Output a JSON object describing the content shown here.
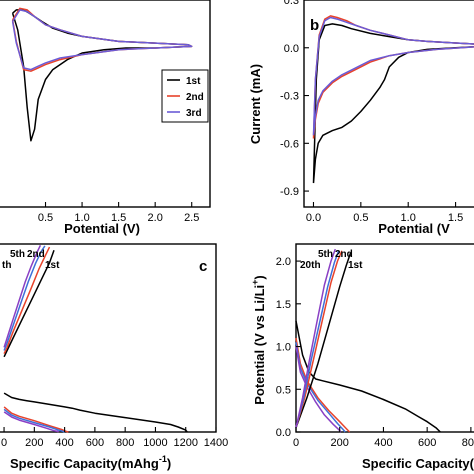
{
  "colors": {
    "cycle1": "#000000",
    "cycle2": "#e8432b",
    "cycle3": "#6b5bd6",
    "cycle5": "#3f6fd8",
    "cycle20": "#8a3fc4"
  },
  "chart_data": [
    {
      "panel": "a",
      "type": "line",
      "title": "",
      "xlabel": "Potential (V)",
      "ylabel": "",
      "xticks": [
        "0.5",
        "1.0",
        "1.5",
        "2.0",
        "2.5"
      ],
      "yticks": [],
      "xlim": [
        -0.15,
        2.75
      ],
      "ylim": [
        -0.95,
        0.3
      ],
      "legend": {
        "position": "right",
        "entries": [
          "1st",
          "2nd",
          "3rd"
        ]
      },
      "series": [
        {
          "name": "1st",
          "color": "#000000",
          "x": [
            0.05,
            0.12,
            0.2,
            0.25,
            0.3,
            0.35,
            0.4,
            0.5,
            0.6,
            0.8,
            1.0,
            1.3,
            1.6,
            2.0,
            2.5,
            2.45,
            2.0,
            1.5,
            1.0,
            0.8,
            0.6,
            0.45,
            0.35,
            0.28,
            0.2,
            0.1,
            0.05
          ],
          "y": [
            0.22,
            0.12,
            -0.1,
            -0.35,
            -0.55,
            -0.48,
            -0.3,
            -0.18,
            -0.12,
            -0.06,
            -0.02,
            0.0,
            0.01,
            0.01,
            0.02,
            0.03,
            0.04,
            0.05,
            0.08,
            0.1,
            0.13,
            0.17,
            0.2,
            0.22,
            0.24,
            0.24,
            0.22
          ]
        },
        {
          "name": "2nd",
          "color": "#e8432b",
          "x": [
            0.05,
            0.1,
            0.2,
            0.3,
            0.4,
            0.5,
            0.7,
            1.0,
            1.5,
            2.0,
            2.5,
            2.45,
            2.0,
            1.5,
            1.0,
            0.7,
            0.5,
            0.35,
            0.25,
            0.15,
            0.05
          ],
          "y": [
            0.18,
            0.05,
            -0.12,
            -0.13,
            -0.11,
            -0.09,
            -0.06,
            -0.03,
            0.0,
            0.01,
            0.02,
            0.03,
            0.04,
            0.05,
            0.08,
            0.12,
            0.15,
            0.2,
            0.24,
            0.25,
            0.18
          ]
        },
        {
          "name": "3rd",
          "color": "#6b5bd6",
          "x": [
            0.05,
            0.1,
            0.2,
            0.3,
            0.4,
            0.5,
            0.7,
            1.0,
            1.5,
            2.0,
            2.5,
            2.45,
            2.0,
            1.5,
            1.0,
            0.7,
            0.5,
            0.35,
            0.25,
            0.15,
            0.05
          ],
          "y": [
            0.17,
            0.04,
            -0.11,
            -0.12,
            -0.1,
            -0.08,
            -0.05,
            -0.03,
            0.0,
            0.01,
            0.02,
            0.03,
            0.04,
            0.05,
            0.08,
            0.12,
            0.15,
            0.2,
            0.23,
            0.24,
            0.17
          ]
        }
      ]
    },
    {
      "panel": "b",
      "type": "line",
      "title": "",
      "xlabel": "Potential (V",
      "ylabel": "Current (mA)",
      "xticks": [
        "0.0",
        "0.5",
        "1.0",
        "1.5"
      ],
      "yticks": [
        "0.3",
        "0.0",
        "-0.3",
        "-0.6",
        "-0.9"
      ],
      "xlim": [
        -0.1,
        1.8
      ],
      "ylim": [
        -1.0,
        0.3
      ],
      "series": [
        {
          "name": "1st",
          "color": "#000000",
          "x": [
            0.0,
            0.02,
            0.05,
            0.1,
            0.2,
            0.3,
            0.4,
            0.5,
            0.6,
            0.7,
            0.75,
            0.8,
            0.9,
            1.0,
            1.2,
            1.5,
            1.8,
            1.8,
            1.5,
            1.2,
            1.0,
            0.8,
            0.6,
            0.4,
            0.3,
            0.2,
            0.12,
            0.06,
            0.03,
            0.0
          ],
          "y": [
            -0.85,
            -0.7,
            -0.6,
            -0.55,
            -0.52,
            -0.5,
            -0.46,
            -0.4,
            -0.33,
            -0.25,
            -0.2,
            -0.12,
            -0.06,
            -0.03,
            -0.01,
            0.0,
            0.01,
            0.02,
            0.03,
            0.04,
            0.05,
            0.07,
            0.09,
            0.12,
            0.14,
            0.15,
            0.14,
            0.05,
            -0.2,
            -0.85
          ]
        },
        {
          "name": "2nd",
          "color": "#e8432b",
          "x": [
            0.0,
            0.02,
            0.05,
            0.1,
            0.2,
            0.3,
            0.4,
            0.5,
            0.6,
            0.8,
            1.0,
            1.3,
            1.8,
            1.8,
            1.5,
            1.2,
            1.0,
            0.8,
            0.6,
            0.45,
            0.35,
            0.25,
            0.18,
            0.12,
            0.06,
            0.02,
            0.0
          ],
          "y": [
            -0.57,
            -0.45,
            -0.35,
            -0.28,
            -0.22,
            -0.18,
            -0.15,
            -0.12,
            -0.09,
            -0.05,
            -0.03,
            -0.01,
            0.01,
            0.02,
            0.03,
            0.04,
            0.05,
            0.08,
            0.11,
            0.14,
            0.17,
            0.19,
            0.2,
            0.18,
            0.08,
            -0.2,
            -0.57
          ]
        },
        {
          "name": "3rd",
          "color": "#6b5bd6",
          "x": [
            0.0,
            0.02,
            0.05,
            0.1,
            0.2,
            0.3,
            0.4,
            0.5,
            0.6,
            0.8,
            1.0,
            1.3,
            1.8,
            1.8,
            1.5,
            1.2,
            1.0,
            0.8,
            0.6,
            0.45,
            0.35,
            0.25,
            0.18,
            0.12,
            0.06,
            0.02,
            0.0
          ],
          "y": [
            -0.55,
            -0.43,
            -0.33,
            -0.27,
            -0.21,
            -0.17,
            -0.14,
            -0.11,
            -0.08,
            -0.05,
            -0.03,
            -0.01,
            0.01,
            0.02,
            0.03,
            0.04,
            0.05,
            0.08,
            0.11,
            0.14,
            0.16,
            0.18,
            0.19,
            0.17,
            0.07,
            -0.2,
            -0.55
          ]
        }
      ]
    },
    {
      "panel": "c",
      "type": "line",
      "title": "",
      "xlabel": "Specific  Capacity(mAhg",
      "xlabel_superscript": "-1",
      "xlabel_tail": ")",
      "ylabel": "",
      "xticks": [
        "0",
        "200",
        "400",
        "600",
        "800",
        "1000",
        "1200",
        "1400"
      ],
      "yticks": [],
      "xlim": [
        -40,
        1400
      ],
      "ylim": [
        0,
        3.0
      ],
      "annotations": [
        "th",
        "5th",
        "2nd",
        "1st"
      ],
      "series": [
        {
          "name": "1st",
          "color": "#000000",
          "x": [
            0,
            50,
            100,
            150,
            200,
            300,
            400,
            450,
            500,
            600,
            800,
            1000,
            1100,
            1150,
            1200,
            1210
          ],
          "y": [
            0.62,
            0.55,
            0.52,
            0.5,
            0.48,
            0.44,
            0.4,
            0.38,
            0.35,
            0.3,
            0.23,
            0.16,
            0.12,
            0.08,
            0.03,
            0.0
          ]
        },
        {
          "name": "2nd",
          "color": "#e8432b",
          "x": [
            0,
            50,
            100,
            200,
            300,
            380,
            410,
            425
          ],
          "y": [
            0.4,
            0.3,
            0.25,
            0.18,
            0.1,
            0.04,
            0.01,
            0.0
          ]
        },
        {
          "name": "5th",
          "color": "#3f6fd8",
          "x": [
            0,
            50,
            100,
            200,
            300,
            360,
            390,
            400
          ],
          "y": [
            0.36,
            0.27,
            0.22,
            0.15,
            0.08,
            0.03,
            0.01,
            0.0
          ]
        },
        {
          "name": "20th",
          "color": "#8a3fc4",
          "x": [
            0,
            50,
            100,
            200,
            280,
            330,
            355,
            360
          ],
          "y": [
            0.32,
            0.24,
            0.19,
            0.12,
            0.06,
            0.02,
            0.01,
            0.0
          ]
        },
        {
          "name": "1st-charge",
          "color": "#000000",
          "x": [
            0,
            20,
            60,
            120,
            180,
            240,
            300,
            330
          ],
          "y": [
            1.2,
            1.3,
            1.5,
            1.8,
            2.1,
            2.4,
            2.7,
            2.9
          ]
        },
        {
          "name": "2nd-charge",
          "color": "#e8432b",
          "x": [
            0,
            20,
            60,
            120,
            180,
            230,
            280,
            300
          ],
          "y": [
            1.25,
            1.35,
            1.6,
            1.95,
            2.3,
            2.6,
            2.85,
            2.95
          ]
        },
        {
          "name": "5th-charge",
          "color": "#3f6fd8",
          "x": [
            0,
            20,
            60,
            110,
            160,
            210,
            250,
            270
          ],
          "y": [
            1.3,
            1.42,
            1.7,
            2.05,
            2.4,
            2.7,
            2.9,
            2.97
          ]
        },
        {
          "name": "20th-charge",
          "color": "#8a3fc4",
          "x": [
            0,
            20,
            60,
            100,
            140,
            180,
            220,
            240
          ],
          "y": [
            1.35,
            1.5,
            1.8,
            2.1,
            2.4,
            2.65,
            2.88,
            2.98
          ]
        }
      ]
    },
    {
      "panel": "d",
      "type": "line",
      "title": "",
      "xlabel": "Specific  Capacity(mAh",
      "ylabel": "Potential (V vs Li/Li",
      "ylabel_superscript": "+",
      "ylabel_tail": ")",
      "xticks": [
        "0",
        "200",
        "400",
        "600",
        "800"
      ],
      "yticks": [
        "0.0",
        "0.5",
        "1.0",
        "1.5",
        "2.0"
      ],
      "xlim": [
        0,
        860
      ],
      "ylim": [
        0,
        2.2
      ],
      "annotations": [
        "20th",
        "5th",
        "2nd",
        "1st"
      ],
      "series": [
        {
          "name": "1st",
          "color": "#000000",
          "x": [
            0,
            30,
            60,
            90,
            120,
            200,
            300,
            400,
            500,
            560,
            600,
            640,
            660
          ],
          "y": [
            1.3,
            0.9,
            0.7,
            0.62,
            0.6,
            0.55,
            0.48,
            0.38,
            0.27,
            0.18,
            0.12,
            0.05,
            0.0
          ]
        },
        {
          "name": "2nd",
          "color": "#e8432b",
          "x": [
            0,
            20,
            50,
            100,
            150,
            200,
            230,
            245
          ],
          "y": [
            1.1,
            0.8,
            0.6,
            0.4,
            0.25,
            0.12,
            0.04,
            0.0
          ]
        },
        {
          "name": "5th",
          "color": "#3f6fd8",
          "x": [
            0,
            20,
            50,
            100,
            150,
            190,
            215,
            225
          ],
          "y": [
            1.05,
            0.75,
            0.57,
            0.37,
            0.22,
            0.1,
            0.03,
            0.0
          ]
        },
        {
          "name": "20th",
          "color": "#8a3fc4",
          "x": [
            0,
            20,
            50,
            90,
            130,
            170,
            195,
            205
          ],
          "y": [
            1.0,
            0.7,
            0.53,
            0.35,
            0.2,
            0.09,
            0.03,
            0.0
          ]
        },
        {
          "name": "1st-charge",
          "color": "#000000",
          "x": [
            0,
            50,
            100,
            150,
            200,
            230,
            250
          ],
          "y": [
            0.05,
            0.4,
            0.8,
            1.25,
            1.7,
            1.95,
            2.1
          ]
        },
        {
          "name": "2nd-charge",
          "color": "#e8432b",
          "x": [
            0,
            40,
            80,
            120,
            160,
            190,
            210
          ],
          "y": [
            0.05,
            0.4,
            0.85,
            1.3,
            1.75,
            2.0,
            2.12
          ]
        },
        {
          "name": "5th-charge",
          "color": "#3f6fd8",
          "x": [
            0,
            35,
            70,
            110,
            145,
            175,
            195
          ],
          "y": [
            0.05,
            0.4,
            0.85,
            1.3,
            1.7,
            1.98,
            2.12
          ]
        },
        {
          "name": "20th-charge",
          "color": "#8a3fc4",
          "x": [
            0,
            30,
            60,
            95,
            130,
            160,
            180
          ],
          "y": [
            0.05,
            0.4,
            0.82,
            1.28,
            1.72,
            2.0,
            2.14
          ]
        }
      ]
    }
  ],
  "panel_letters": {
    "b": "b",
    "c": "c",
    "d": "d"
  }
}
